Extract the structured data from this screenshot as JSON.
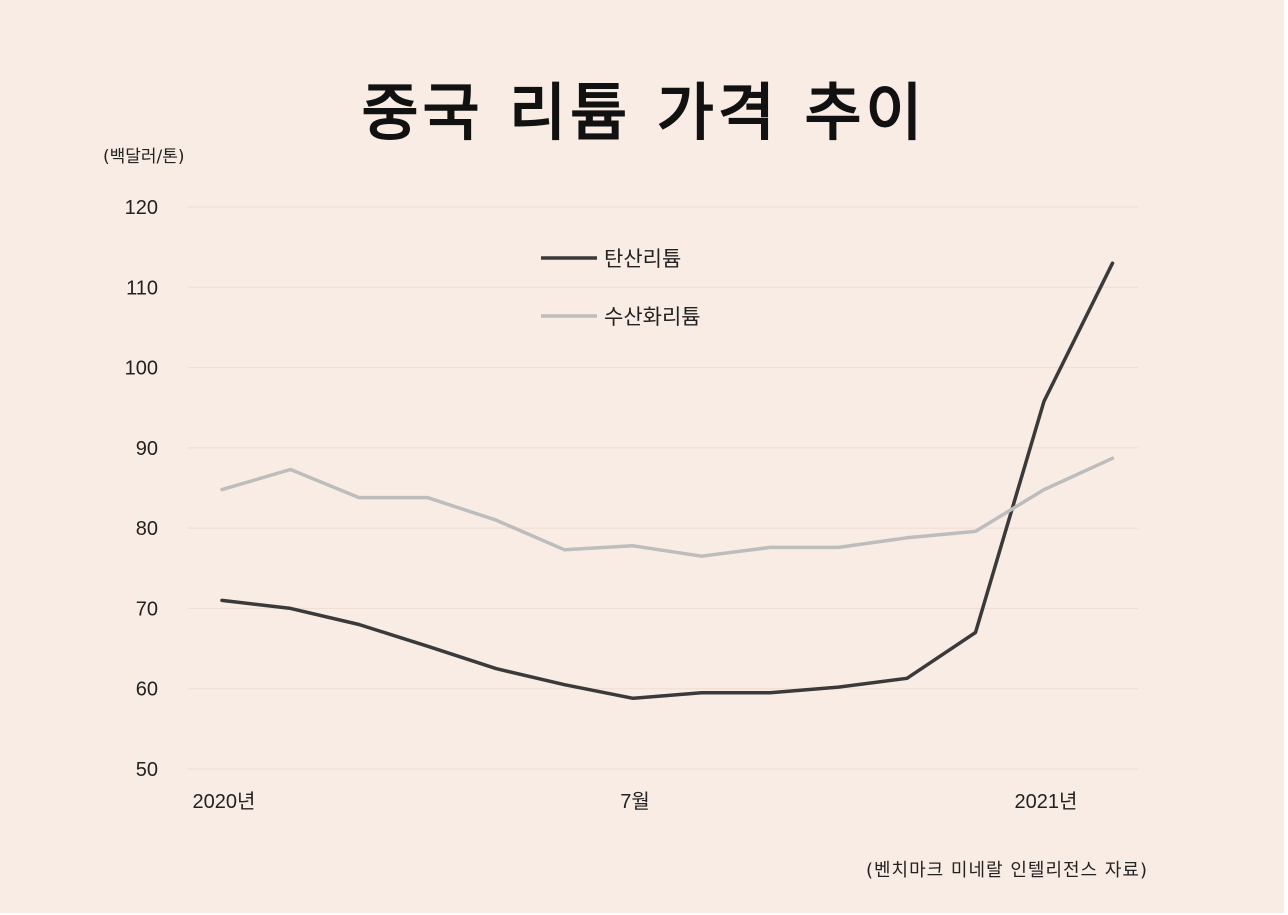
{
  "chart_data": {
    "type": "line",
    "title": "중국 리튬 가격 추이",
    "unit_label": "(백달러/톤)",
    "source_note": "(벤치마크 미네랄 인텔리전스 자료)",
    "ylim": [
      50,
      120
    ],
    "yticks": [
      120,
      110,
      100,
      90,
      80,
      70,
      60,
      50
    ],
    "grid": true,
    "legend_position": "top-center",
    "x_tick_labels": [
      {
        "index": 0,
        "label": "2020년"
      },
      {
        "index": 6,
        "label": "7월"
      },
      {
        "index": 12,
        "label": "2021년"
      }
    ],
    "series": [
      {
        "name": "탄산리튬",
        "color": "#3a3a3a",
        "values": [
          71,
          70,
          68,
          65.3,
          62.5,
          60.5,
          58.8,
          59.5,
          59.5,
          60.2,
          61.3,
          67,
          95.8,
          113
        ]
      },
      {
        "name": "수산화리튬",
        "color": "#bdbdbd",
        "values": [
          84.8,
          87.3,
          83.8,
          83.8,
          81,
          77.3,
          77.8,
          76.5,
          77.6,
          77.6,
          78.8,
          79.6,
          84.8,
          88.7
        ]
      }
    ]
  }
}
